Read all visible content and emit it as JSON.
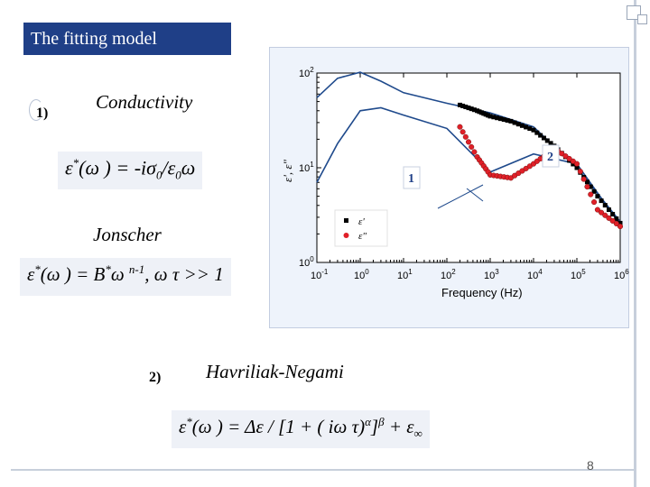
{
  "slide": {
    "title": "The fitting model",
    "page_number": "8"
  },
  "item1": {
    "number": "1)",
    "label": "Conductivity",
    "equation": {
      "eps": "ε",
      "star": "*",
      "lhs_rest": "(ω ) = -iσ",
      "sub0a": "0",
      "slash": "/ε",
      "sub0b": "0",
      "tail": "ω"
    }
  },
  "jonscher": {
    "label": "Jonscher",
    "equation": {
      "eps": "ε",
      "star1": "*",
      "mid": "(ω ) = B",
      "star2": "*",
      "omega": "ω ",
      "exp": "n-1",
      "cond": ", ω τ >> 1"
    }
  },
  "item2": {
    "number": "2)",
    "label": "Havriliak-Negami",
    "equation": {
      "eps": "ε",
      "star": "*",
      "mid": "(ω ) = Δε / [1 + ( iω τ)",
      "alpha": "α",
      "close": "]",
      "beta": "β",
      "plus": " + ε",
      "inf": "∞"
    }
  },
  "colors": {
    "title_bg": "#1f3f87",
    "eq_bg": "#eef1f7",
    "chart_bg": "#eef3fb",
    "line_blue": "#1f4a8c",
    "marker_red": "#e02028",
    "marker_black": "#000000"
  },
  "chart_data": {
    "type": "line",
    "x_scale": "log",
    "y_scale": "log",
    "xlim": [
      0.1,
      1000000
    ],
    "ylim": [
      1,
      100
    ],
    "xlabel": "Frequency (Hz)",
    "ylabel": "ε', ε\"",
    "x_ticks": [
      {
        "base": "10",
        "exp": "-1"
      },
      {
        "base": "10",
        "exp": "0"
      },
      {
        "base": "10",
        "exp": "1"
      },
      {
        "base": "10",
        "exp": "2"
      },
      {
        "base": "10",
        "exp": "3"
      },
      {
        "base": "10",
        "exp": "4"
      },
      {
        "base": "10",
        "exp": "5"
      },
      {
        "base": "10",
        "exp": "6"
      }
    ],
    "y_ticks": [
      {
        "base": "10",
        "exp": "0"
      },
      {
        "base": "10",
        "exp": "1"
      },
      {
        "base": "10",
        "exp": "2"
      }
    ],
    "legend": [
      {
        "name": "ε'",
        "marker": "square",
        "color": "#000000"
      },
      {
        "name": "ε\"",
        "marker": "circle",
        "color": "#e02028"
      }
    ],
    "legend_position": "bottom-left",
    "annotations": [
      "1",
      "2"
    ],
    "series": [
      {
        "name": "ε'",
        "x": [
          200.0,
          500.0,
          1000.0,
          3000.0,
          10000.0,
          30000.0,
          100000.0,
          300000.0,
          1000000.0
        ],
        "y": [
          46,
          40,
          35,
          31,
          25,
          17,
          10,
          5,
          2.6
        ]
      },
      {
        "name": "ε\"",
        "x": [
          200.0,
          500.0,
          1000.0,
          3000.0,
          10000.0,
          30000.0,
          100000.0,
          300000.0,
          1000000.0
        ],
        "y": [
          27,
          13,
          8.4,
          7.8,
          11,
          16,
          11,
          3.6,
          2.4
        ]
      }
    ],
    "fit_curves": [
      {
        "x": [
          0.1,
          0.3,
          1,
          3,
          10,
          100,
          1000,
          10000.0,
          100000.0,
          1000000.0
        ],
        "y": [
          55,
          88,
          102,
          82,
          62,
          48,
          38,
          27,
          10,
          2.7
        ]
      },
      {
        "x": [
          0.1,
          0.3,
          1,
          3,
          10,
          100,
          1000,
          10000.0,
          100000.0,
          1000000.0
        ],
        "y": [
          7,
          18,
          40,
          43,
          36,
          26,
          9,
          14,
          11,
          2.5
        ]
      }
    ]
  }
}
